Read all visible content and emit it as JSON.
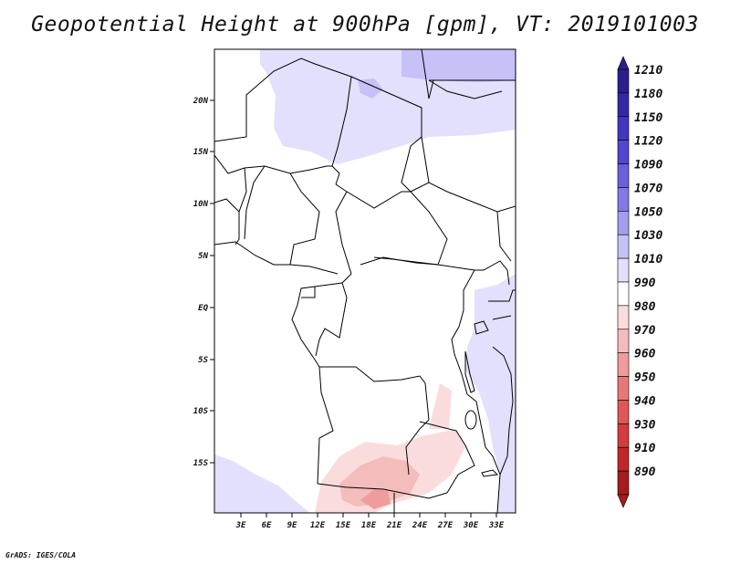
{
  "title": "Geopotential Height at 900hPa [gpm], VT: 2019101003",
  "footer": "GrADS: IGES/COLA",
  "map": {
    "lat_labels": [
      "20N",
      "15N",
      "10N",
      "5N",
      "EQ",
      "5S",
      "10S",
      "15S"
    ],
    "lon_labels": [
      "3E",
      "6E",
      "9E",
      "12E",
      "15E",
      "18E",
      "21E",
      "24E",
      "27E",
      "30E",
      "33E"
    ]
  },
  "colorbar": {
    "levels": [
      "1210",
      "1180",
      "1150",
      "1120",
      "1090",
      "1070",
      "1050",
      "1030",
      "1010",
      "990",
      "980",
      "970",
      "960",
      "950",
      "940",
      "930",
      "910",
      "890"
    ],
    "colors": [
      "#2a1f8f",
      "#3528a8",
      "#4236bf",
      "#5246d0",
      "#6a5fdc",
      "#8478e6",
      "#a49cef",
      "#c6c1f7",
      "#e2e0fc",
      "#ffffff",
      "#fbdcdc",
      "#f5bcbc",
      "#ef9c9c",
      "#e87878",
      "#de5858",
      "#d23c3c",
      "#c02828",
      "#a31d1d"
    ]
  }
}
